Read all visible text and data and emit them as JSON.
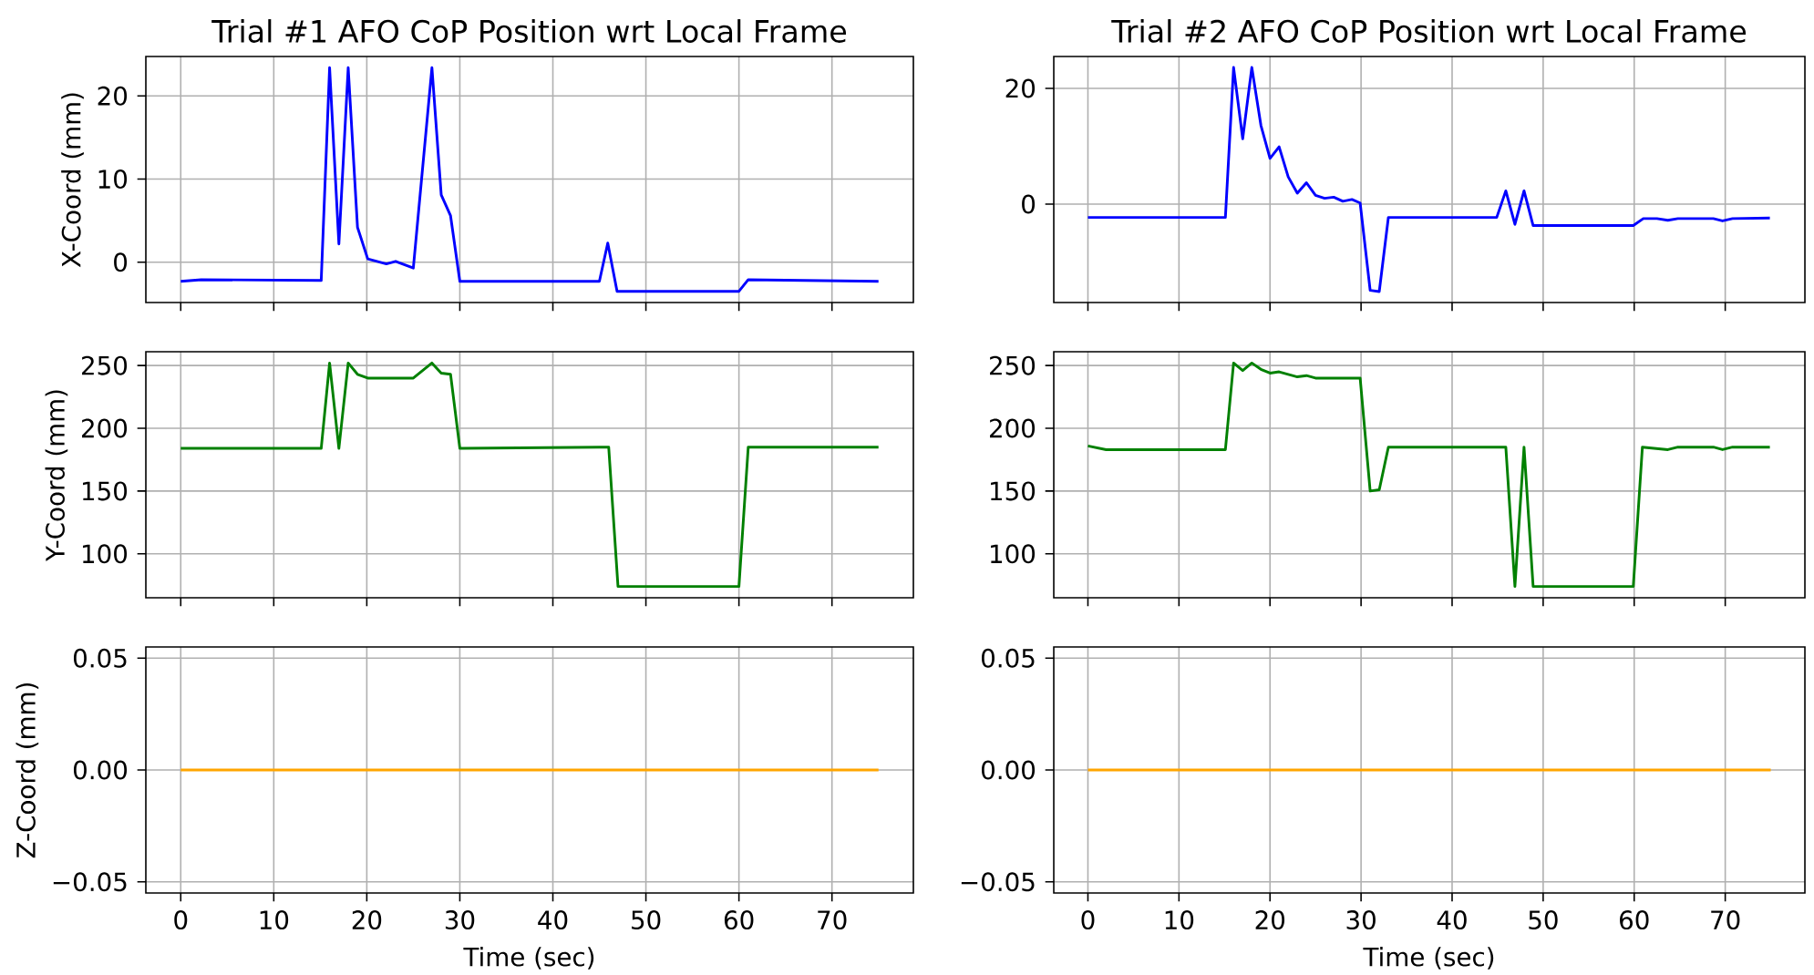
{
  "chart_data": [
    {
      "type": "line",
      "title": "Trial #1 AFO CoP Position wrt Local Frame",
      "ylabel": "X-Coord (mm)",
      "xlim": [
        -3.75,
        78.75
      ],
      "ylim": [
        -4.85,
        24.75
      ],
      "xticks": [
        0,
        10,
        20,
        30,
        40,
        50,
        60,
        70
      ],
      "yticks": [
        0,
        10,
        20
      ],
      "grid": true,
      "tick_labels": "y",
      "series": [
        {
          "color": "#0000ff",
          "x": [
            0,
            2.2,
            15.1,
            16,
            17,
            18,
            19,
            20.1,
            22.1,
            23.1,
            25,
            27,
            28,
            29,
            30,
            45,
            45.9,
            46.9,
            60,
            61,
            75
          ],
          "values": [
            -2.3,
            -2.1,
            -2.2,
            23.4,
            2.2,
            23.4,
            4.2,
            0.4,
            -0.2,
            0.1,
            -0.7,
            23.4,
            8.1,
            5.6,
            -2.3,
            -2.3,
            2.3,
            -3.5,
            -3.5,
            -2.1,
            -2.3
          ]
        }
      ]
    },
    {
      "type": "line",
      "title": "Trial #2 AFO CoP Position wrt Local Frame",
      "xlim": [
        -3.75,
        78.75
      ],
      "ylim": [
        -17,
        25.5
      ],
      "xticks": [
        0,
        10,
        20,
        30,
        40,
        50,
        60,
        70
      ],
      "yticks": [
        0,
        20
      ],
      "grid": true,
      "tick_labels": "y",
      "series": [
        {
          "color": "#0000ff",
          "x": [
            0,
            15.1,
            16,
            17,
            18,
            19,
            20,
            21,
            22,
            23,
            24,
            25,
            26,
            27,
            28,
            29,
            29.9,
            31,
            32,
            33,
            44.9,
            45.9,
            46.9,
            47.9,
            48.9,
            59.9,
            61,
            62.5,
            63.7,
            64.8,
            68.7,
            69.7,
            70.8,
            74.9
          ],
          "values": [
            -2.3,
            -2.3,
            23.6,
            11.3,
            23.6,
            13.6,
            7.9,
            9.9,
            4.7,
            1.9,
            3.7,
            1.5,
            1.0,
            1.2,
            0.5,
            0.8,
            0.2,
            -14.9,
            -15.1,
            -2.3,
            -2.3,
            2.3,
            -3.5,
            2.3,
            -3.7,
            -3.7,
            -2.5,
            -2.5,
            -2.8,
            -2.5,
            -2.5,
            -2.9,
            -2.5,
            -2.4
          ]
        }
      ]
    },
    {
      "type": "line",
      "ylabel": "Y-Coord (mm)",
      "xlim": [
        -3.75,
        78.75
      ],
      "ylim": [
        65,
        261
      ],
      "xticks": [
        0,
        10,
        20,
        30,
        40,
        50,
        60,
        70
      ],
      "yticks": [
        100,
        150,
        200,
        250
      ],
      "grid": true,
      "tick_labels": "y",
      "series": [
        {
          "color": "#008000",
          "x": [
            0,
            15.1,
            16,
            17,
            18,
            19,
            20.1,
            25,
            27,
            28,
            29,
            30,
            45,
            46,
            47,
            60,
            61,
            75
          ],
          "values": [
            184,
            184,
            252,
            184,
            252,
            243,
            240,
            240,
            252,
            244,
            243,
            184,
            185,
            185,
            74,
            74,
            185,
            185
          ]
        }
      ]
    },
    {
      "type": "line",
      "xlim": [
        -3.75,
        78.75
      ],
      "ylim": [
        65,
        261
      ],
      "xticks": [
        0,
        10,
        20,
        30,
        40,
        50,
        60,
        70
      ],
      "yticks": [
        100,
        150,
        200,
        250
      ],
      "grid": true,
      "tick_labels": "y",
      "series": [
        {
          "color": "#008000",
          "x": [
            0,
            2,
            15.1,
            16,
            17,
            18,
            19,
            20,
            21,
            23,
            24,
            25,
            29.9,
            31,
            32,
            33,
            45.9,
            46.9,
            47.9,
            48.9,
            59.9,
            60.9,
            63.7,
            64.8,
            68.7,
            69.7,
            70.8,
            74.9
          ],
          "values": [
            186,
            183,
            183,
            252,
            246,
            252,
            247,
            244,
            245,
            241,
            242,
            240,
            240,
            150,
            151,
            185,
            185,
            74,
            185,
            74,
            74,
            185,
            183,
            185,
            185,
            183,
            185,
            185
          ]
        }
      ]
    },
    {
      "type": "line",
      "xlabel": "Time (sec)",
      "ylabel": "Z-Coord (mm)",
      "xlim": [
        -3.75,
        78.75
      ],
      "ylim": [
        -0.055,
        0.055
      ],
      "xticks": [
        0,
        10,
        20,
        30,
        40,
        50,
        60,
        70
      ],
      "yticks": [
        {
          "value": -0.05,
          "label": "−0.05"
        },
        {
          "value": 0,
          "label": "0.00"
        },
        {
          "value": 0.05,
          "label": "0.05"
        }
      ],
      "grid": true,
      "series": [
        {
          "color": "#ffa500",
          "x": [
            0,
            75
          ],
          "values": [
            0,
            0
          ]
        }
      ]
    },
    {
      "type": "line",
      "xlabel": "Time (sec)",
      "xlim": [
        -3.75,
        78.75
      ],
      "ylim": [
        -0.055,
        0.055
      ],
      "xticks": [
        0,
        10,
        20,
        30,
        40,
        50,
        60,
        70
      ],
      "yticks": [
        {
          "value": -0.05,
          "label": "−0.05"
        },
        {
          "value": 0,
          "label": "0.00"
        },
        {
          "value": 0.05,
          "label": "0.05"
        }
      ],
      "grid": true,
      "series": [
        {
          "color": "#ffa500",
          "x": [
            0,
            75
          ],
          "values": [
            0,
            0
          ]
        }
      ]
    }
  ]
}
